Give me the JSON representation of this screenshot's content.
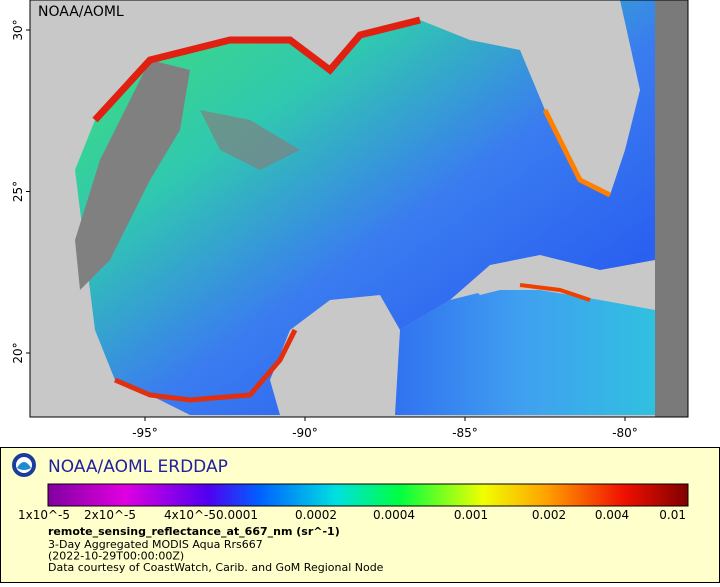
{
  "header": {
    "title": "NOAA/AOML"
  },
  "map": {
    "lat_ticks": [
      "30°",
      "25°",
      "20°"
    ],
    "lon_ticks": [
      "-95°",
      "-90°",
      "-85°",
      "-80°"
    ]
  },
  "legend": {
    "title": "NOAA/AOML ERDDAP",
    "colorbar_ticks": [
      "1x10^-5",
      "2x10^-5",
      "4x10^-5",
      "0.0001",
      "0.0002",
      "0.0004",
      "0.001",
      "0.002",
      "0.004",
      "0.01"
    ],
    "variable": "remote_sensing_reflectance_at_667_nm (sr^-1)",
    "lines": [
      "3-Day Aggregated MODIS Aqua Rrs667",
      "(2022-10-29T00:00:00Z)",
      "Data courtesy of CoastWatch, Carib. and GoM Regional Node"
    ]
  }
}
